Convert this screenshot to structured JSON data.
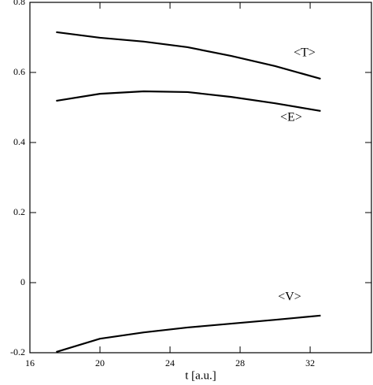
{
  "chart_data": {
    "type": "line",
    "x_label": "t [a.u.]",
    "x": [
      17.5,
      20,
      22.5,
      25,
      27.5,
      30,
      32.6
    ],
    "series": [
      {
        "name": "<T>",
        "color": "#000000",
        "values": [
          0.715,
          0.699,
          0.688,
          0.672,
          0.647,
          0.618,
          0.582
        ]
      },
      {
        "name": "<E>",
        "color": "#000000",
        "values": [
          0.519,
          0.539,
          0.546,
          0.544,
          0.53,
          0.512,
          0.49
        ]
      },
      {
        "name": "<V>",
        "color": "#000000",
        "values": [
          -0.198,
          -0.16,
          -0.142,
          -0.128,
          -0.117,
          -0.106,
          -0.094
        ]
      }
    ],
    "xlim": [
      16,
      35.5
    ],
    "xticks": [
      16,
      20,
      24,
      28,
      32
    ],
    "ylim": [
      -0.2,
      0.8
    ],
    "yticks": [
      -0.2,
      0,
      0.2,
      0.4,
      0.6,
      0.8
    ],
    "grid": false
  }
}
